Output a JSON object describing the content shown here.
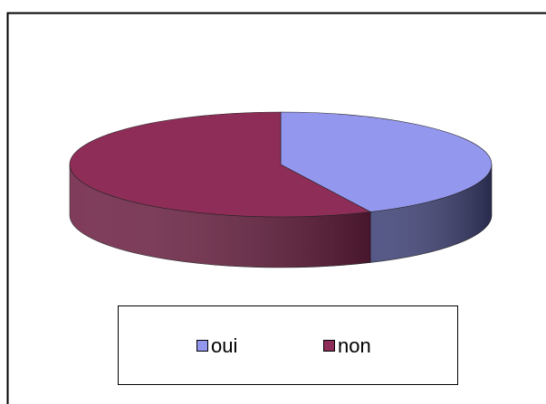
{
  "chart_data": {
    "type": "pie",
    "categories": [
      "oui",
      "non"
    ],
    "values": [
      43,
      57
    ],
    "colors": [
      "#9497ee",
      "#8e2d57"
    ],
    "side_colors": [
      "#3f4277",
      "#6e2244"
    ],
    "legend": "bottom"
  }
}
